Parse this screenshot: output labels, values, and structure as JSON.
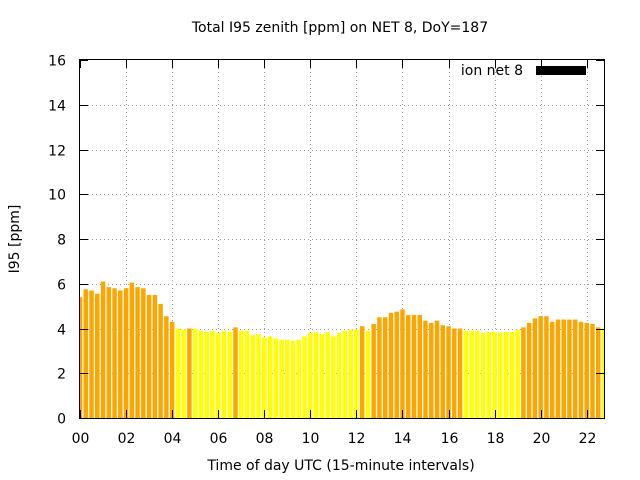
{
  "chart_data": {
    "type": "bar",
    "title": "Total I95 zenith [ppm] on NET 8, DoY=187",
    "xlabel": "Time of day UTC (15-minute intervals)",
    "ylabel": "I95 [ppm]",
    "xlim": [
      0,
      22.75
    ],
    "ylim": [
      0,
      16
    ],
    "x_ticks": [
      "00",
      "02",
      "04",
      "06",
      "08",
      "10",
      "12",
      "14",
      "16",
      "18",
      "20",
      "22"
    ],
    "y_ticks": [
      "0",
      "2",
      "4",
      "6",
      "8",
      "10",
      "12",
      "14",
      "16"
    ],
    "grid": true,
    "legend": {
      "label": "ion net 8",
      "color": "#000000",
      "position": "top-right"
    },
    "colors": {
      "high": "#FFA500",
      "low": "#FFFF00"
    },
    "bars": [
      {
        "x": 0.0,
        "value": 5.4,
        "level": "high"
      },
      {
        "x": 0.25,
        "value": 5.75,
        "level": "high"
      },
      {
        "x": 0.5,
        "value": 5.7,
        "level": "high"
      },
      {
        "x": 0.75,
        "value": 5.55,
        "level": "high"
      },
      {
        "x": 1.0,
        "value": 6.1,
        "level": "high"
      },
      {
        "x": 1.25,
        "value": 5.85,
        "level": "high"
      },
      {
        "x": 1.5,
        "value": 5.8,
        "level": "high"
      },
      {
        "x": 1.75,
        "value": 5.7,
        "level": "high"
      },
      {
        "x": 2.0,
        "value": 5.8,
        "level": "high"
      },
      {
        "x": 2.25,
        "value": 6.05,
        "level": "high"
      },
      {
        "x": 2.5,
        "value": 5.85,
        "level": "high"
      },
      {
        "x": 2.75,
        "value": 5.8,
        "level": "high"
      },
      {
        "x": 3.0,
        "value": 5.5,
        "level": "high"
      },
      {
        "x": 3.25,
        "value": 5.5,
        "level": "high"
      },
      {
        "x": 3.5,
        "value": 5.1,
        "level": "high"
      },
      {
        "x": 3.75,
        "value": 4.55,
        "level": "high"
      },
      {
        "x": 4.0,
        "value": 4.3,
        "level": "high"
      },
      {
        "x": 4.25,
        "value": 4.0,
        "level": "low"
      },
      {
        "x": 4.5,
        "value": 3.95,
        "level": "low"
      },
      {
        "x": 4.75,
        "value": 4.0,
        "level": "high"
      },
      {
        "x": 5.0,
        "value": 4.0,
        "level": "low"
      },
      {
        "x": 5.25,
        "value": 3.9,
        "level": "low"
      },
      {
        "x": 5.5,
        "value": 3.85,
        "level": "low"
      },
      {
        "x": 5.75,
        "value": 3.9,
        "level": "low"
      },
      {
        "x": 6.0,
        "value": 3.8,
        "level": "low"
      },
      {
        "x": 6.25,
        "value": 3.9,
        "level": "low"
      },
      {
        "x": 6.5,
        "value": 3.85,
        "level": "low"
      },
      {
        "x": 6.75,
        "value": 4.05,
        "level": "high"
      },
      {
        "x": 7.0,
        "value": 3.9,
        "level": "low"
      },
      {
        "x": 7.25,
        "value": 3.9,
        "level": "low"
      },
      {
        "x": 7.5,
        "value": 3.7,
        "level": "low"
      },
      {
        "x": 7.75,
        "value": 3.75,
        "level": "low"
      },
      {
        "x": 8.0,
        "value": 3.6,
        "level": "low"
      },
      {
        "x": 8.25,
        "value": 3.65,
        "level": "low"
      },
      {
        "x": 8.5,
        "value": 3.55,
        "level": "low"
      },
      {
        "x": 8.75,
        "value": 3.5,
        "level": "low"
      },
      {
        "x": 9.0,
        "value": 3.5,
        "level": "low"
      },
      {
        "x": 9.25,
        "value": 3.45,
        "level": "low"
      },
      {
        "x": 9.5,
        "value": 3.5,
        "level": "low"
      },
      {
        "x": 9.75,
        "value": 3.65,
        "level": "low"
      },
      {
        "x": 10.0,
        "value": 3.8,
        "level": "low"
      },
      {
        "x": 10.25,
        "value": 3.85,
        "level": "low"
      },
      {
        "x": 10.5,
        "value": 3.75,
        "level": "low"
      },
      {
        "x": 10.75,
        "value": 3.85,
        "level": "low"
      },
      {
        "x": 11.0,
        "value": 3.65,
        "level": "low"
      },
      {
        "x": 11.25,
        "value": 3.8,
        "level": "low"
      },
      {
        "x": 11.5,
        "value": 3.9,
        "level": "low"
      },
      {
        "x": 11.75,
        "value": 3.95,
        "level": "low"
      },
      {
        "x": 12.0,
        "value": 3.95,
        "level": "low"
      },
      {
        "x": 12.25,
        "value": 4.1,
        "level": "high"
      },
      {
        "x": 12.5,
        "value": 3.9,
        "level": "low"
      },
      {
        "x": 12.75,
        "value": 4.2,
        "level": "high"
      },
      {
        "x": 13.0,
        "value": 4.5,
        "level": "high"
      },
      {
        "x": 13.25,
        "value": 4.5,
        "level": "high"
      },
      {
        "x": 13.5,
        "value": 4.7,
        "level": "high"
      },
      {
        "x": 13.75,
        "value": 4.75,
        "level": "high"
      },
      {
        "x": 14.0,
        "value": 4.85,
        "level": "high"
      },
      {
        "x": 14.25,
        "value": 4.6,
        "level": "high"
      },
      {
        "x": 14.5,
        "value": 4.6,
        "level": "high"
      },
      {
        "x": 14.75,
        "value": 4.6,
        "level": "high"
      },
      {
        "x": 15.0,
        "value": 4.35,
        "level": "high"
      },
      {
        "x": 15.25,
        "value": 4.25,
        "level": "high"
      },
      {
        "x": 15.5,
        "value": 4.35,
        "level": "high"
      },
      {
        "x": 15.75,
        "value": 4.15,
        "level": "high"
      },
      {
        "x": 16.0,
        "value": 4.1,
        "level": "high"
      },
      {
        "x": 16.25,
        "value": 4.0,
        "level": "high"
      },
      {
        "x": 16.5,
        "value": 4.0,
        "level": "high"
      },
      {
        "x": 16.75,
        "value": 3.9,
        "level": "low"
      },
      {
        "x": 17.0,
        "value": 3.9,
        "level": "low"
      },
      {
        "x": 17.25,
        "value": 3.9,
        "level": "low"
      },
      {
        "x": 17.5,
        "value": 3.8,
        "level": "low"
      },
      {
        "x": 17.75,
        "value": 3.85,
        "level": "low"
      },
      {
        "x": 18.0,
        "value": 3.85,
        "level": "low"
      },
      {
        "x": 18.25,
        "value": 3.8,
        "level": "low"
      },
      {
        "x": 18.5,
        "value": 3.85,
        "level": "low"
      },
      {
        "x": 18.75,
        "value": 3.85,
        "level": "low"
      },
      {
        "x": 19.0,
        "value": 3.95,
        "level": "low"
      },
      {
        "x": 19.25,
        "value": 4.05,
        "level": "high"
      },
      {
        "x": 19.5,
        "value": 4.25,
        "level": "high"
      },
      {
        "x": 19.75,
        "value": 4.45,
        "level": "high"
      },
      {
        "x": 20.0,
        "value": 4.55,
        "level": "high"
      },
      {
        "x": 20.25,
        "value": 4.55,
        "level": "high"
      },
      {
        "x": 20.5,
        "value": 4.3,
        "level": "high"
      },
      {
        "x": 20.75,
        "value": 4.4,
        "level": "high"
      },
      {
        "x": 21.0,
        "value": 4.4,
        "level": "high"
      },
      {
        "x": 21.25,
        "value": 4.4,
        "level": "high"
      },
      {
        "x": 21.5,
        "value": 4.4,
        "level": "high"
      },
      {
        "x": 21.75,
        "value": 4.3,
        "level": "high"
      },
      {
        "x": 22.0,
        "value": 4.25,
        "level": "high"
      },
      {
        "x": 22.25,
        "value": 4.2,
        "level": "high"
      },
      {
        "x": 22.5,
        "value": 4.05,
        "level": "high"
      },
      {
        "x": 22.75,
        "value": 4.0,
        "level": "low"
      }
    ]
  }
}
